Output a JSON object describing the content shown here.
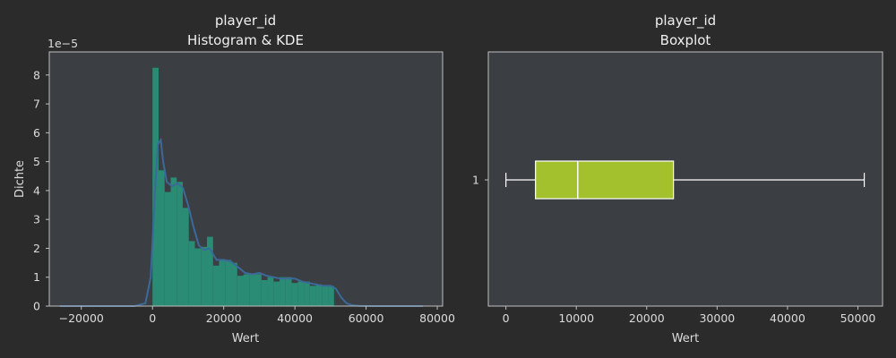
{
  "colors": {
    "background": "#2b2b2b",
    "plot_bg": "#3b3e42",
    "hist": "#2a8c75",
    "kde": "#3b6a9a",
    "box_fill": "#a3c12c",
    "whisker": "#ffffff"
  },
  "chart_data": [
    {
      "type": "histogram",
      "title_line1": "player_id",
      "title_line2": "Histogram & KDE",
      "xlabel": "Wert",
      "ylabel": "Dichte",
      "scale_label": "1e−5",
      "xlim": [
        -29000,
        81500
      ],
      "ylim": [
        0,
        8.8
      ],
      "xticks": [
        -20000,
        0,
        20000,
        40000,
        60000,
        80000
      ],
      "yticks": [
        0,
        1,
        2,
        3,
        4,
        5,
        6,
        7,
        8
      ],
      "bins": [
        {
          "x0": 0,
          "x1": 1700,
          "value": 8.25
        },
        {
          "x0": 1700,
          "x1": 3400,
          "value": 4.7
        },
        {
          "x0": 3400,
          "x1": 5100,
          "value": 3.95
        },
        {
          "x0": 5100,
          "x1": 6800,
          "value": 4.45
        },
        {
          "x0": 6800,
          "x1": 8500,
          "value": 4.3
        },
        {
          "x0": 8500,
          "x1": 10200,
          "value": 3.4
        },
        {
          "x0": 10200,
          "x1": 11900,
          "value": 2.25
        },
        {
          "x0": 11900,
          "x1": 13600,
          "value": 2.0
        },
        {
          "x0": 13600,
          "x1": 15300,
          "value": 2.05
        },
        {
          "x0": 15300,
          "x1": 17000,
          "value": 2.4
        },
        {
          "x0": 17000,
          "x1": 18700,
          "value": 1.4
        },
        {
          "x0": 18700,
          "x1": 20400,
          "value": 1.6
        },
        {
          "x0": 20400,
          "x1": 22100,
          "value": 1.6
        },
        {
          "x0": 22100,
          "x1": 23800,
          "value": 1.5
        },
        {
          "x0": 23800,
          "x1": 25500,
          "value": 1.05
        },
        {
          "x0": 25500,
          "x1": 27200,
          "value": 1.1
        },
        {
          "x0": 27200,
          "x1": 28900,
          "value": 1.1
        },
        {
          "x0": 28900,
          "x1": 30600,
          "value": 1.1
        },
        {
          "x0": 30600,
          "x1": 32300,
          "value": 0.9
        },
        {
          "x0": 32300,
          "x1": 34000,
          "value": 1.0
        },
        {
          "x0": 34000,
          "x1": 35700,
          "value": 0.85
        },
        {
          "x0": 35700,
          "x1": 37400,
          "value": 1.0
        },
        {
          "x0": 37400,
          "x1": 39100,
          "value": 1.0
        },
        {
          "x0": 39100,
          "x1": 40800,
          "value": 0.8
        },
        {
          "x0": 40800,
          "x1": 42500,
          "value": 0.85
        },
        {
          "x0": 42500,
          "x1": 44200,
          "value": 0.85
        },
        {
          "x0": 44200,
          "x1": 45900,
          "value": 0.7
        },
        {
          "x0": 45900,
          "x1": 47600,
          "value": 0.75
        },
        {
          "x0": 47600,
          "x1": 49300,
          "value": 0.7
        },
        {
          "x0": 49300,
          "x1": 51000,
          "value": 0.7
        }
      ],
      "kde": {
        "x": [
          -26000,
          -5000,
          -2000,
          -500,
          0,
          700,
          1500,
          2300,
          3000,
          4000,
          5500,
          7000,
          8500,
          10000,
          11500,
          13000,
          14500,
          16000,
          18000,
          20000,
          22000,
          24000,
          26000,
          28000,
          30000,
          32000,
          34000,
          36000,
          38000,
          40000,
          42000,
          44000,
          46000,
          48000,
          50000,
          51500,
          53000,
          54500,
          56000,
          58000,
          62000,
          76000
        ],
        "y": [
          0,
          0,
          0.1,
          1.0,
          2.2,
          4.0,
          5.6,
          5.75,
          5.0,
          4.3,
          4.15,
          4.25,
          4.1,
          3.5,
          2.75,
          2.1,
          1.95,
          2.0,
          1.6,
          1.6,
          1.55,
          1.35,
          1.15,
          1.1,
          1.15,
          1.05,
          1.0,
          0.95,
          0.95,
          0.95,
          0.85,
          0.8,
          0.75,
          0.7,
          0.7,
          0.6,
          0.3,
          0.1,
          0.03,
          0.01,
          0,
          0
        ]
      }
    },
    {
      "type": "boxplot",
      "title_line1": "player_id",
      "title_line2": "Boxplot",
      "xlabel": "Wert",
      "category": "1",
      "xlim": [
        -2500,
        53500
      ],
      "xticks": [
        0,
        10000,
        20000,
        30000,
        40000,
        50000
      ],
      "whisker_low": 0,
      "q1": 4200,
      "median": 10200,
      "q3": 23800,
      "whisker_high": 50900
    }
  ]
}
